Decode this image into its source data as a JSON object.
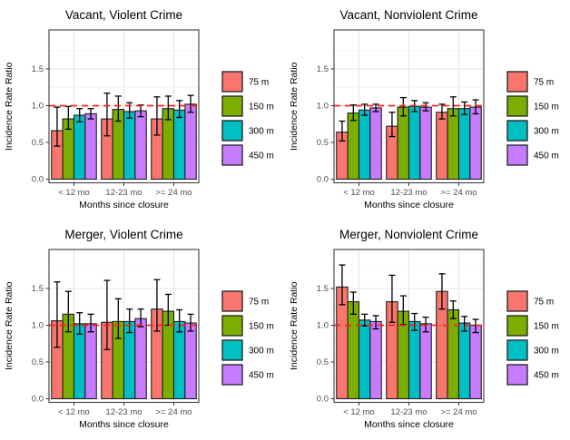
{
  "figure": {
    "background": "#FFFFFF",
    "description": "Incidence rate ratios by distance band and months since closure"
  },
  "style": {
    "series_colors": [
      "#F8766D",
      "#7CAE00",
      "#00BFC4",
      "#C77CFF"
    ],
    "bar_outline": "#1F1F1F",
    "error_bar_color": "#000000",
    "reference_line_color": "#FF1F1F",
    "panel_border": "#3C3C3C",
    "tick_color": "#333333",
    "grid_major": "#E4E4E4",
    "grid_minor": "#F2F2F2",
    "axis_text_color": "#4D4D4D",
    "title_color": "#000000"
  },
  "chart_data": [
    {
      "type": "bar",
      "title": "Vacant, Violent Crime",
      "xlabel": "Months since closure",
      "ylabel": "Incidence Rate Ratio",
      "categories": [
        "< 12 mo",
        "12-23 mo",
        ">= 24 mo"
      ],
      "yticks": [
        "0.0",
        "0.5",
        "1.0",
        "1.5"
      ],
      "ylim": [
        0,
        2.0
      ],
      "grid": true,
      "reference_line": 1.0,
      "legend_position": "right",
      "legend": [
        "75 m",
        "150 m",
        "300 m",
        "450 m"
      ],
      "series": [
        {
          "name": "75 m",
          "values": [
            0.66,
            0.82,
            0.82
          ],
          "ci_low": [
            0.45,
            0.59,
            0.6
          ],
          "ci_high": [
            0.98,
            1.17,
            1.12
          ]
        },
        {
          "name": "150 m",
          "values": [
            0.82,
            0.95,
            0.96
          ],
          "ci_low": [
            0.68,
            0.79,
            0.81
          ],
          "ci_high": [
            0.99,
            1.13,
            1.13
          ]
        },
        {
          "name": "300 m",
          "values": [
            0.87,
            0.92,
            0.94
          ],
          "ci_low": [
            0.78,
            0.83,
            0.84
          ],
          "ci_high": [
            0.96,
            1.04,
            1.07
          ]
        },
        {
          "name": "450 m",
          "values": [
            0.89,
            0.93,
            1.02
          ],
          "ci_low": [
            0.82,
            0.85,
            0.91
          ],
          "ci_high": [
            0.96,
            1.01,
            1.14
          ]
        }
      ]
    },
    {
      "type": "bar",
      "title": "Vacant, Nonviolent Crime",
      "xlabel": "Months since closure",
      "ylabel": "Incidence Rate Ratio",
      "categories": [
        "< 12 mo",
        "12-23 mo",
        ">= 24 mo"
      ],
      "yticks": [
        "0.0",
        "0.5",
        "1.0",
        "1.5"
      ],
      "ylim": [
        0,
        2.0
      ],
      "grid": true,
      "reference_line": 1.0,
      "legend_position": "right",
      "legend": [
        "75 m",
        "150 m",
        "300 m",
        "450 m"
      ],
      "series": [
        {
          "name": "75 m",
          "values": [
            0.64,
            0.72,
            0.91
          ],
          "ci_low": [
            0.52,
            0.58,
            0.82
          ],
          "ci_high": [
            0.79,
            0.91,
            1.02
          ]
        },
        {
          "name": "150 m",
          "values": [
            0.9,
            0.98,
            0.96
          ],
          "ci_low": [
            0.8,
            0.86,
            0.86
          ],
          "ci_high": [
            1.01,
            1.11,
            1.12
          ]
        },
        {
          "name": "300 m",
          "values": [
            0.94,
            0.99,
            0.96
          ],
          "ci_low": [
            0.87,
            0.92,
            0.88
          ],
          "ci_high": [
            1.02,
            1.07,
            1.05
          ]
        },
        {
          "name": "450 m",
          "values": [
            0.97,
            0.98,
            0.98
          ],
          "ci_low": [
            0.92,
            0.93,
            0.89
          ],
          "ci_high": [
            1.02,
            1.04,
            1.08
          ]
        }
      ]
    },
    {
      "type": "bar",
      "title": "Merger, Violent Crime",
      "xlabel": "Months since closure",
      "ylabel": "Incidence Rate Ratio",
      "categories": [
        "< 12 mo",
        "12-23 mo",
        ">= 24 mo"
      ],
      "yticks": [
        "0.0",
        "0.5",
        "1.0",
        "1.5"
      ],
      "ylim": [
        0,
        2.0
      ],
      "grid": true,
      "reference_line": 1.0,
      "legend_position": "right",
      "legend": [
        "75 m",
        "150 m",
        "300 m",
        "450 m"
      ],
      "series": [
        {
          "name": "75 m",
          "values": [
            1.06,
            1.04,
            1.22
          ],
          "ci_low": [
            0.7,
            0.67,
            0.92
          ],
          "ci_high": [
            1.59,
            1.61,
            1.62
          ]
        },
        {
          "name": "150 m",
          "values": [
            1.15,
            1.05,
            1.19
          ],
          "ci_low": [
            0.91,
            0.82,
            1.0
          ],
          "ci_high": [
            1.46,
            1.36,
            1.42
          ]
        },
        {
          "name": "300 m",
          "values": [
            1.02,
            1.05,
            1.05
          ],
          "ci_low": [
            0.88,
            0.9,
            0.91
          ],
          "ci_high": [
            1.17,
            1.22,
            1.21
          ]
        },
        {
          "name": "450 m",
          "values": [
            1.02,
            1.09,
            1.03
          ],
          "ci_low": [
            0.91,
            0.98,
            0.92
          ],
          "ci_high": [
            1.15,
            1.22,
            1.15
          ]
        }
      ]
    },
    {
      "type": "bar",
      "title": "Merger, Nonviolent Crime",
      "xlabel": "Months since closure",
      "ylabel": "Incidence Rate Ratio",
      "categories": [
        "< 12 mo",
        "12-23 mo",
        ">= 24 mo"
      ],
      "yticks": [
        "0.0",
        "0.5",
        "1.0",
        "1.5"
      ],
      "ylim": [
        0,
        2.0
      ],
      "grid": true,
      "reference_line": 1.0,
      "legend_position": "right",
      "legend": [
        "75 m",
        "150 m",
        "300 m",
        "450 m"
      ],
      "series": [
        {
          "name": "75 m",
          "values": [
            1.52,
            1.32,
            1.46
          ],
          "ci_low": [
            1.28,
            1.04,
            1.22
          ],
          "ci_high": [
            1.82,
            1.68,
            1.7
          ]
        },
        {
          "name": "150 m",
          "values": [
            1.32,
            1.19,
            1.21
          ],
          "ci_low": [
            1.15,
            1.01,
            1.09
          ],
          "ci_high": [
            1.45,
            1.4,
            1.33
          ]
        },
        {
          "name": "300 m",
          "values": [
            1.07,
            1.05,
            1.03
          ],
          "ci_low": [
            0.99,
            0.93,
            0.92
          ],
          "ci_high": [
            1.15,
            1.16,
            1.12
          ]
        },
        {
          "name": "450 m",
          "values": [
            1.05,
            1.02,
            1.0
          ],
          "ci_low": [
            0.95,
            0.91,
            0.9
          ],
          "ci_high": [
            1.13,
            1.11,
            1.08
          ]
        }
      ]
    }
  ]
}
